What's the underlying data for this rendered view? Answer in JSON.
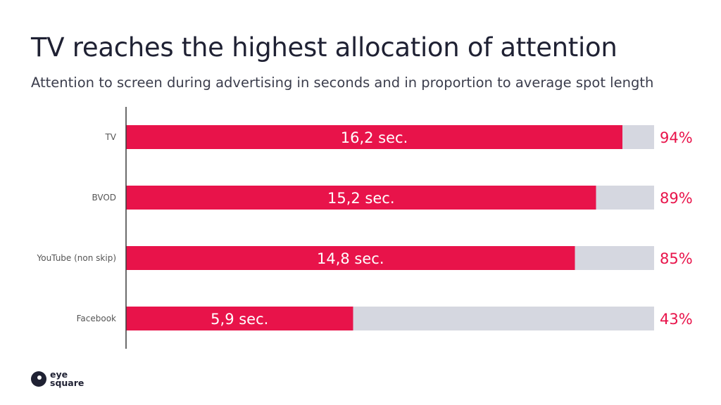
{
  "header": {
    "title": "TV reaches the highest allocation of attention",
    "subtitle": "Attention to screen during advertising in seconds and in proportion to average spot length"
  },
  "logo": {
    "line1": "eye",
    "line2": "square"
  },
  "colors": {
    "bar": "#e8134a",
    "track": "#d5d7e0",
    "axis": "#3a3a3a",
    "category": "#555555"
  },
  "chart_data": {
    "type": "bar",
    "orientation": "horizontal",
    "categories": [
      "TV",
      "BVOD",
      "YouTube (non skip)",
      "Facebook"
    ],
    "series": [
      {
        "values": [
          94,
          89,
          85,
          43
        ],
        "unit": "%"
      }
    ],
    "bar_labels": [
      "16,2 sec.",
      "15,2 sec.",
      "14,8 sec.",
      "5,9 sec."
    ],
    "value_labels": [
      "94%",
      "89%",
      "85%",
      "43%"
    ],
    "xlim": [
      0,
      100
    ],
    "grid": false,
    "legend": "none"
  }
}
